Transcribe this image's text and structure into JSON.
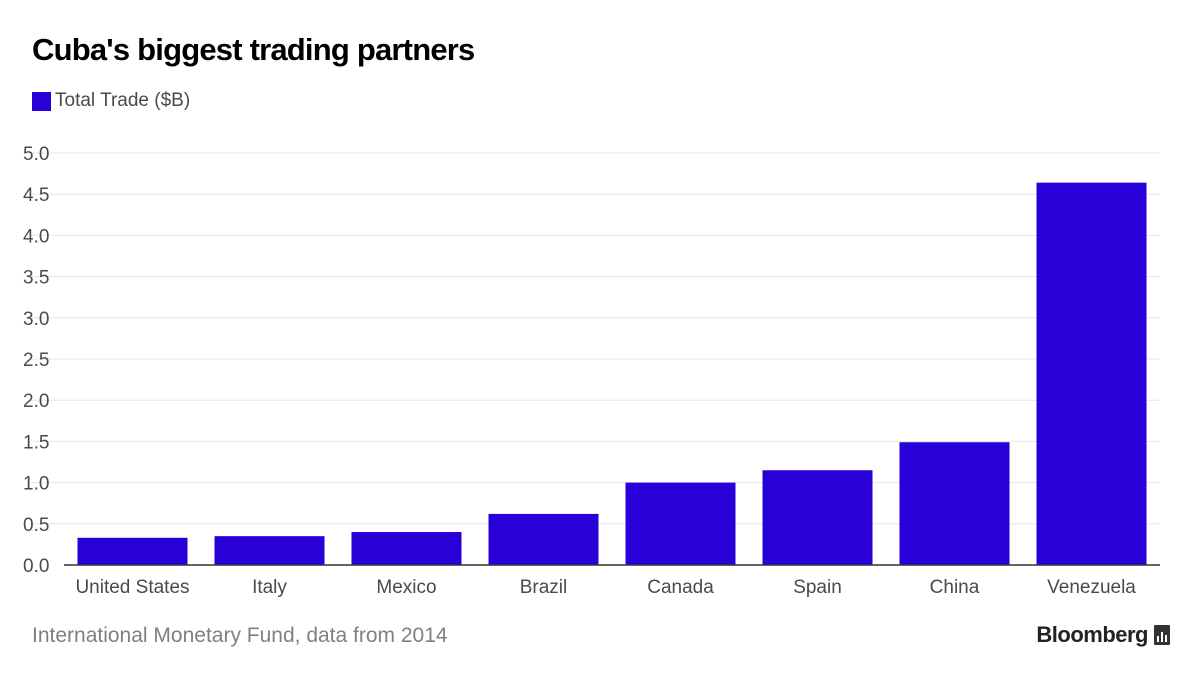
{
  "title": "Cuba's biggest trading partners",
  "legend": {
    "label": "Total Trade ($B)"
  },
  "colors": {
    "bar": "#2a00d9",
    "grid": "#e6e6e6",
    "axis": "#333333"
  },
  "chart_data": {
    "type": "bar",
    "title": "Cuba's biggest trading partners",
    "categories": [
      "United States",
      "Italy",
      "Mexico",
      "Brazil",
      "Canada",
      "Spain",
      "China",
      "Venezuela"
    ],
    "series": [
      {
        "name": "Total Trade ($B)",
        "values": [
          0.33,
          0.35,
          0.4,
          0.62,
          1.0,
          1.15,
          1.49,
          4.64
        ]
      }
    ],
    "yticks": [
      "0.0",
      "0.5",
      "1.0",
      "1.5",
      "2.0",
      "2.5",
      "3.0",
      "3.5",
      "4.0",
      "4.5",
      "5.0"
    ],
    "ylim": [
      0,
      5
    ],
    "grid": true,
    "xlabel": "",
    "ylabel": ""
  },
  "footer": {
    "source": "International Monetary Fund, data from 2014",
    "brand": "Bloomberg",
    "brand_icon": "bloomberg-chart-icon"
  }
}
